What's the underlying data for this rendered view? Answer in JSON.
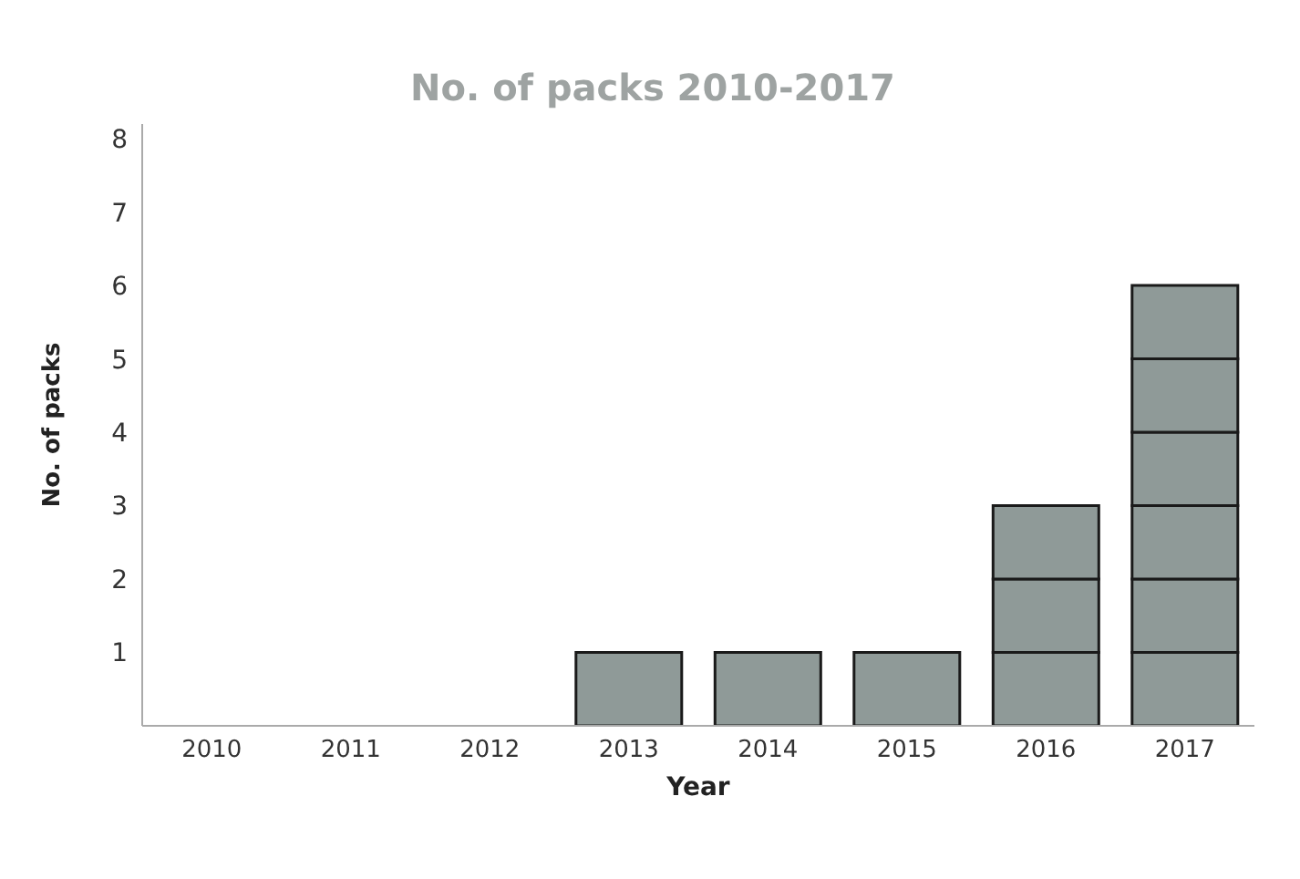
{
  "chart_data": {
    "type": "bar",
    "stacked": true,
    "title": "No. of packs 2010-2017",
    "xlabel": "Year",
    "ylabel": "No. of packs",
    "categories": [
      "2010",
      "2011",
      "2012",
      "2013",
      "2014",
      "2015",
      "2016",
      "2017"
    ],
    "series": [
      {
        "color": "#8f9a98",
        "values": [
          null,
          null,
          null,
          1,
          1,
          1,
          1,
          1
        ]
      },
      {
        "color": "#8f9a98",
        "values": [
          null,
          null,
          null,
          null,
          null,
          null,
          1,
          1
        ]
      },
      {
        "color": "#8f9a98",
        "values": [
          null,
          null,
          null,
          null,
          null,
          null,
          1,
          1
        ]
      },
      {
        "color": "#8f9a98",
        "values": [
          null,
          null,
          null,
          null,
          null,
          null,
          null,
          1
        ]
      },
      {
        "color": "#8f9a98",
        "values": [
          null,
          null,
          null,
          null,
          null,
          null,
          null,
          1
        ]
      },
      {
        "color": "#8f9a98",
        "values": [
          null,
          null,
          null,
          null,
          null,
          null,
          null,
          1
        ]
      }
    ],
    "ylim": [
      0,
      8.2
    ],
    "yticks": [
      1,
      2,
      3,
      4,
      5,
      6,
      7,
      8
    ],
    "grid": false,
    "legend": false
  }
}
